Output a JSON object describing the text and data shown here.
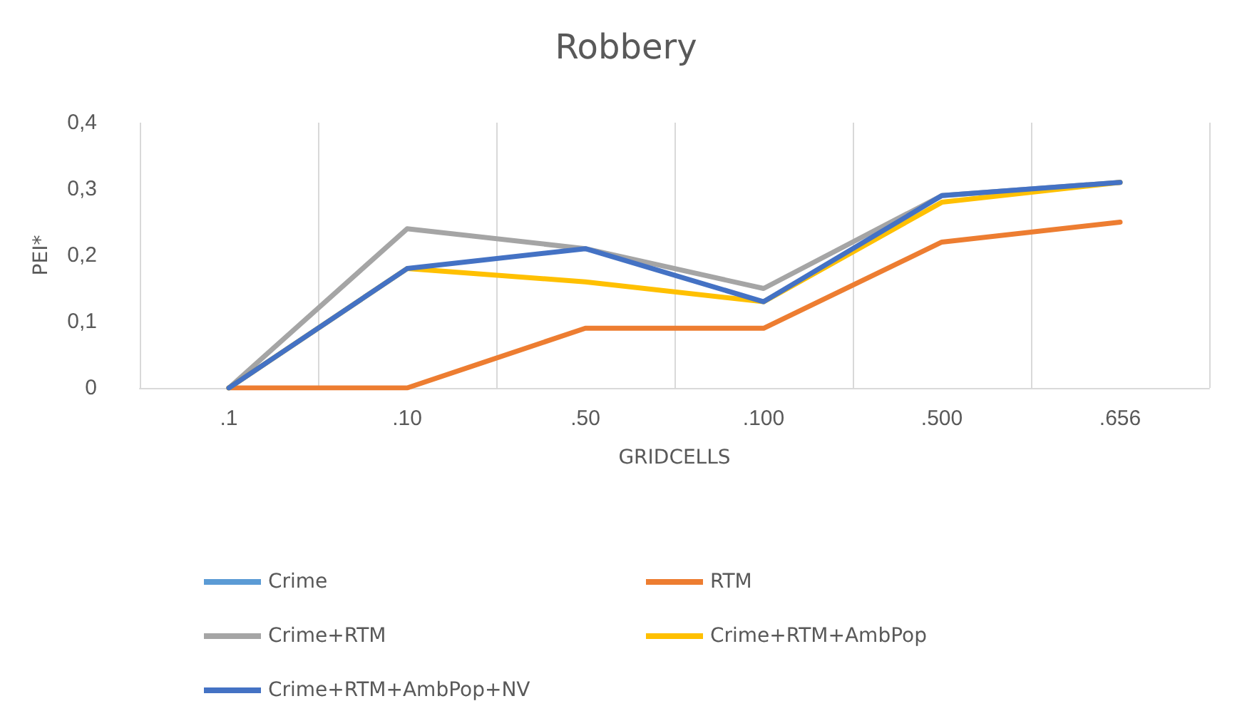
{
  "chart_data": {
    "type": "line",
    "title": "Robbery",
    "xlabel": "GRIDCELLS",
    "ylabel": "PEI*",
    "categories": [
      ".1",
      ".10",
      ".50",
      ".100",
      ".500",
      ".656"
    ],
    "series": [
      {
        "name": "Crime",
        "color": "#5b9bd5",
        "values": [
          null,
          null,
          null,
          null,
          null,
          null
        ]
      },
      {
        "name": "RTM",
        "color": "#ed7d31",
        "values": [
          0,
          0,
          0.09,
          0.09,
          0.22,
          0.25
        ]
      },
      {
        "name": "Crime+RTM",
        "color": "#a5a5a5",
        "values": [
          0,
          0.24,
          0.21,
          0.15,
          0.29,
          0.31
        ]
      },
      {
        "name": "Crime+RTM+AmbPop",
        "color": "#ffc000",
        "values": [
          0,
          0.18,
          0.16,
          0.13,
          0.28,
          0.31
        ]
      },
      {
        "name": "Crime+RTM+AmbPop+NV",
        "color": "#4472c4",
        "values": [
          0,
          0.18,
          0.21,
          0.13,
          0.29,
          0.31
        ]
      }
    ],
    "ylim": [
      0,
      0.4
    ],
    "yticks": [
      0,
      {
        "value": 0.1,
        "label": "0,1"
      },
      {
        "value": 0.2,
        "label": "0,2"
      },
      {
        "value": 0.3,
        "label": "0,3"
      },
      {
        "value": 0.4,
        "label": "0,4"
      }
    ],
    "grid": "x",
    "legend": "bottom",
    "marker": "none",
    "line_style": "solid"
  }
}
